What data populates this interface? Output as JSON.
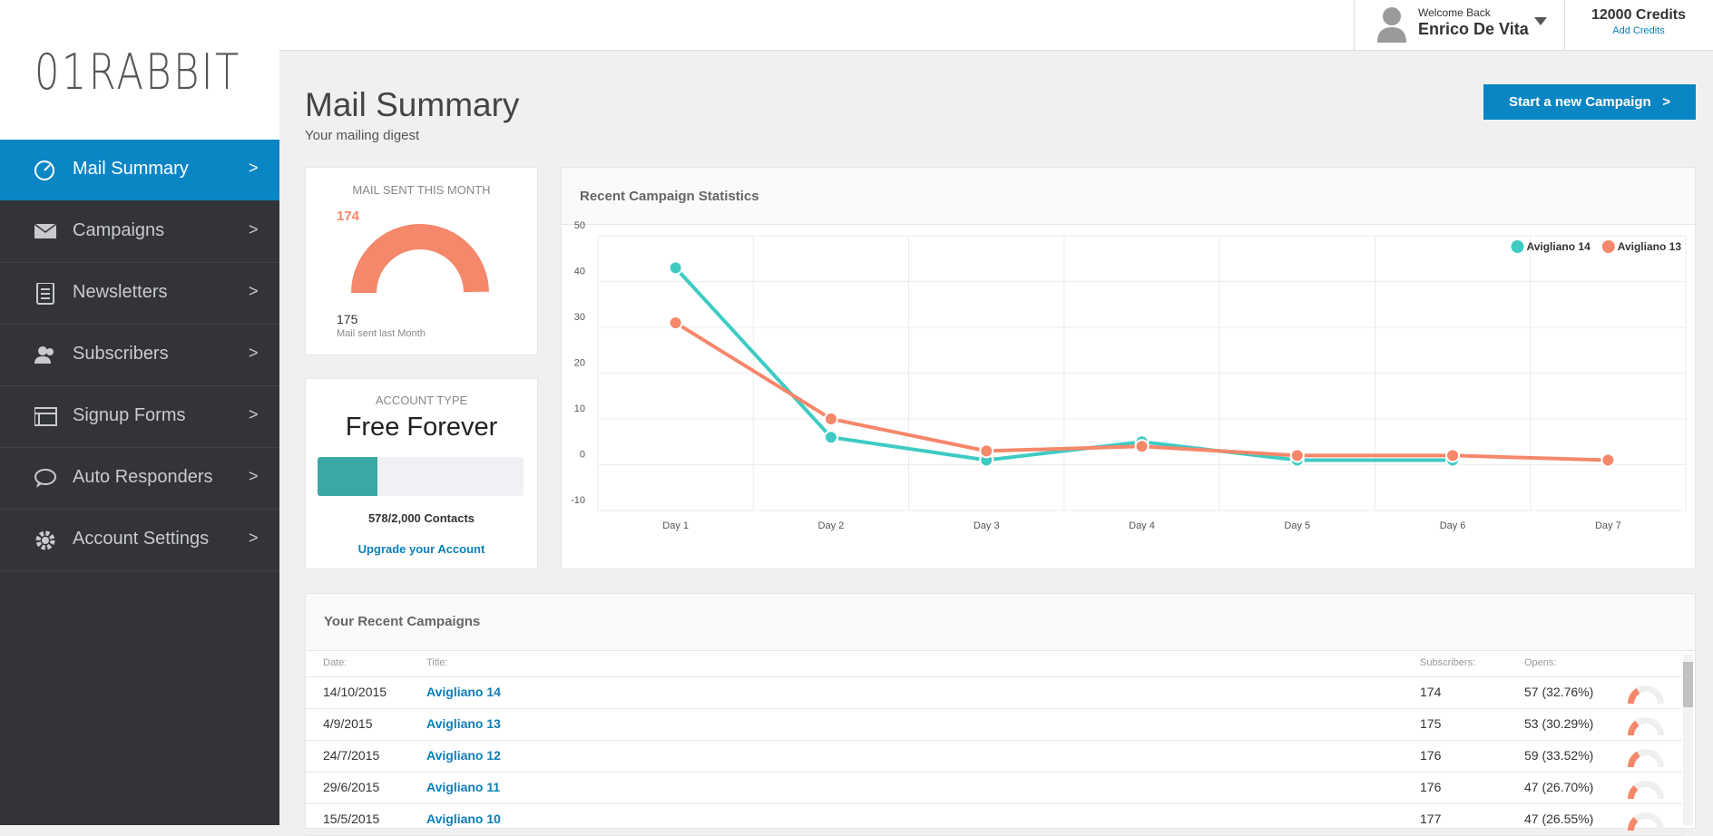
{
  "logo": "01RABBIT",
  "sidebar": {
    "items": [
      "Mail Summary",
      "Campaigns",
      "Newsletters",
      "Subscribers",
      "Signup Forms",
      "Auto Responders",
      "Account Settings"
    ],
    "chevron": ">"
  },
  "header": {
    "welcome": "Welcome Back",
    "user": "Enrico De Vita",
    "credits": "12000 Credits",
    "add_credits": "Add Credits"
  },
  "page": {
    "title": "Mail Summary",
    "subtitle": "Your mailing digest",
    "button": "Start a new Campaign   >"
  },
  "mail_sent": {
    "title": "MAIL SENT THIS MONTH",
    "this_month": 174,
    "last_month": 175,
    "last_month_label": "Mail sent last Month"
  },
  "account": {
    "title": "ACCOUNT TYPE",
    "plan": "Free Forever",
    "contacts": {
      "value": 578,
      "max": 2000,
      "label": "578/2,000 Contacts"
    },
    "upgrade": "Upgrade your Account"
  },
  "chart_data": {
    "type": "line",
    "title": "Recent Campaign Statistics",
    "categories": [
      "Day 1",
      "Day 2",
      "Day 3",
      "Day 4",
      "Day 5",
      "Day 6",
      "Day 7"
    ],
    "series": [
      {
        "name": "Avigliano 14",
        "color": "#3ecbc3",
        "values": [
          43,
          6,
          1,
          5,
          1,
          1,
          null
        ]
      },
      {
        "name": "Avigliano 13",
        "color": "#f5876a",
        "values": [
          31,
          10,
          3,
          4,
          2,
          2,
          1
        ]
      }
    ],
    "ylim": [
      -10,
      50
    ],
    "yticks": [
      -10,
      0,
      10,
      20,
      30,
      40,
      50
    ],
    "grid": true,
    "legend": "top-right"
  },
  "campaigns": {
    "title": "Your Recent Campaigns",
    "columns": [
      "Date:",
      "Title:",
      "Subscribers:",
      "Opens:"
    ],
    "rows": [
      {
        "date": "14/10/2015",
        "title": "Avigliano 14",
        "subscribers": 174,
        "opens": {
          "value": 32.76,
          "label": "57 (32.76%)"
        }
      },
      {
        "date": "4/9/2015",
        "title": "Avigliano 13",
        "subscribers": 175,
        "opens": {
          "value": 30.29,
          "label": "53 (30.29%)"
        }
      },
      {
        "date": "24/7/2015",
        "title": "Avigliano 12",
        "subscribers": 176,
        "opens": {
          "value": 33.52,
          "label": "59 (33.52%)"
        }
      },
      {
        "date": "29/6/2015",
        "title": "Avigliano 11",
        "subscribers": 176,
        "opens": {
          "value": 26.7,
          "label": "47 (26.70%)"
        }
      },
      {
        "date": "15/5/2015",
        "title": "Avigliano 10",
        "subscribers": 177,
        "opens": {
          "value": 26.55,
          "label": "47 (26.55%)"
        }
      }
    ]
  }
}
